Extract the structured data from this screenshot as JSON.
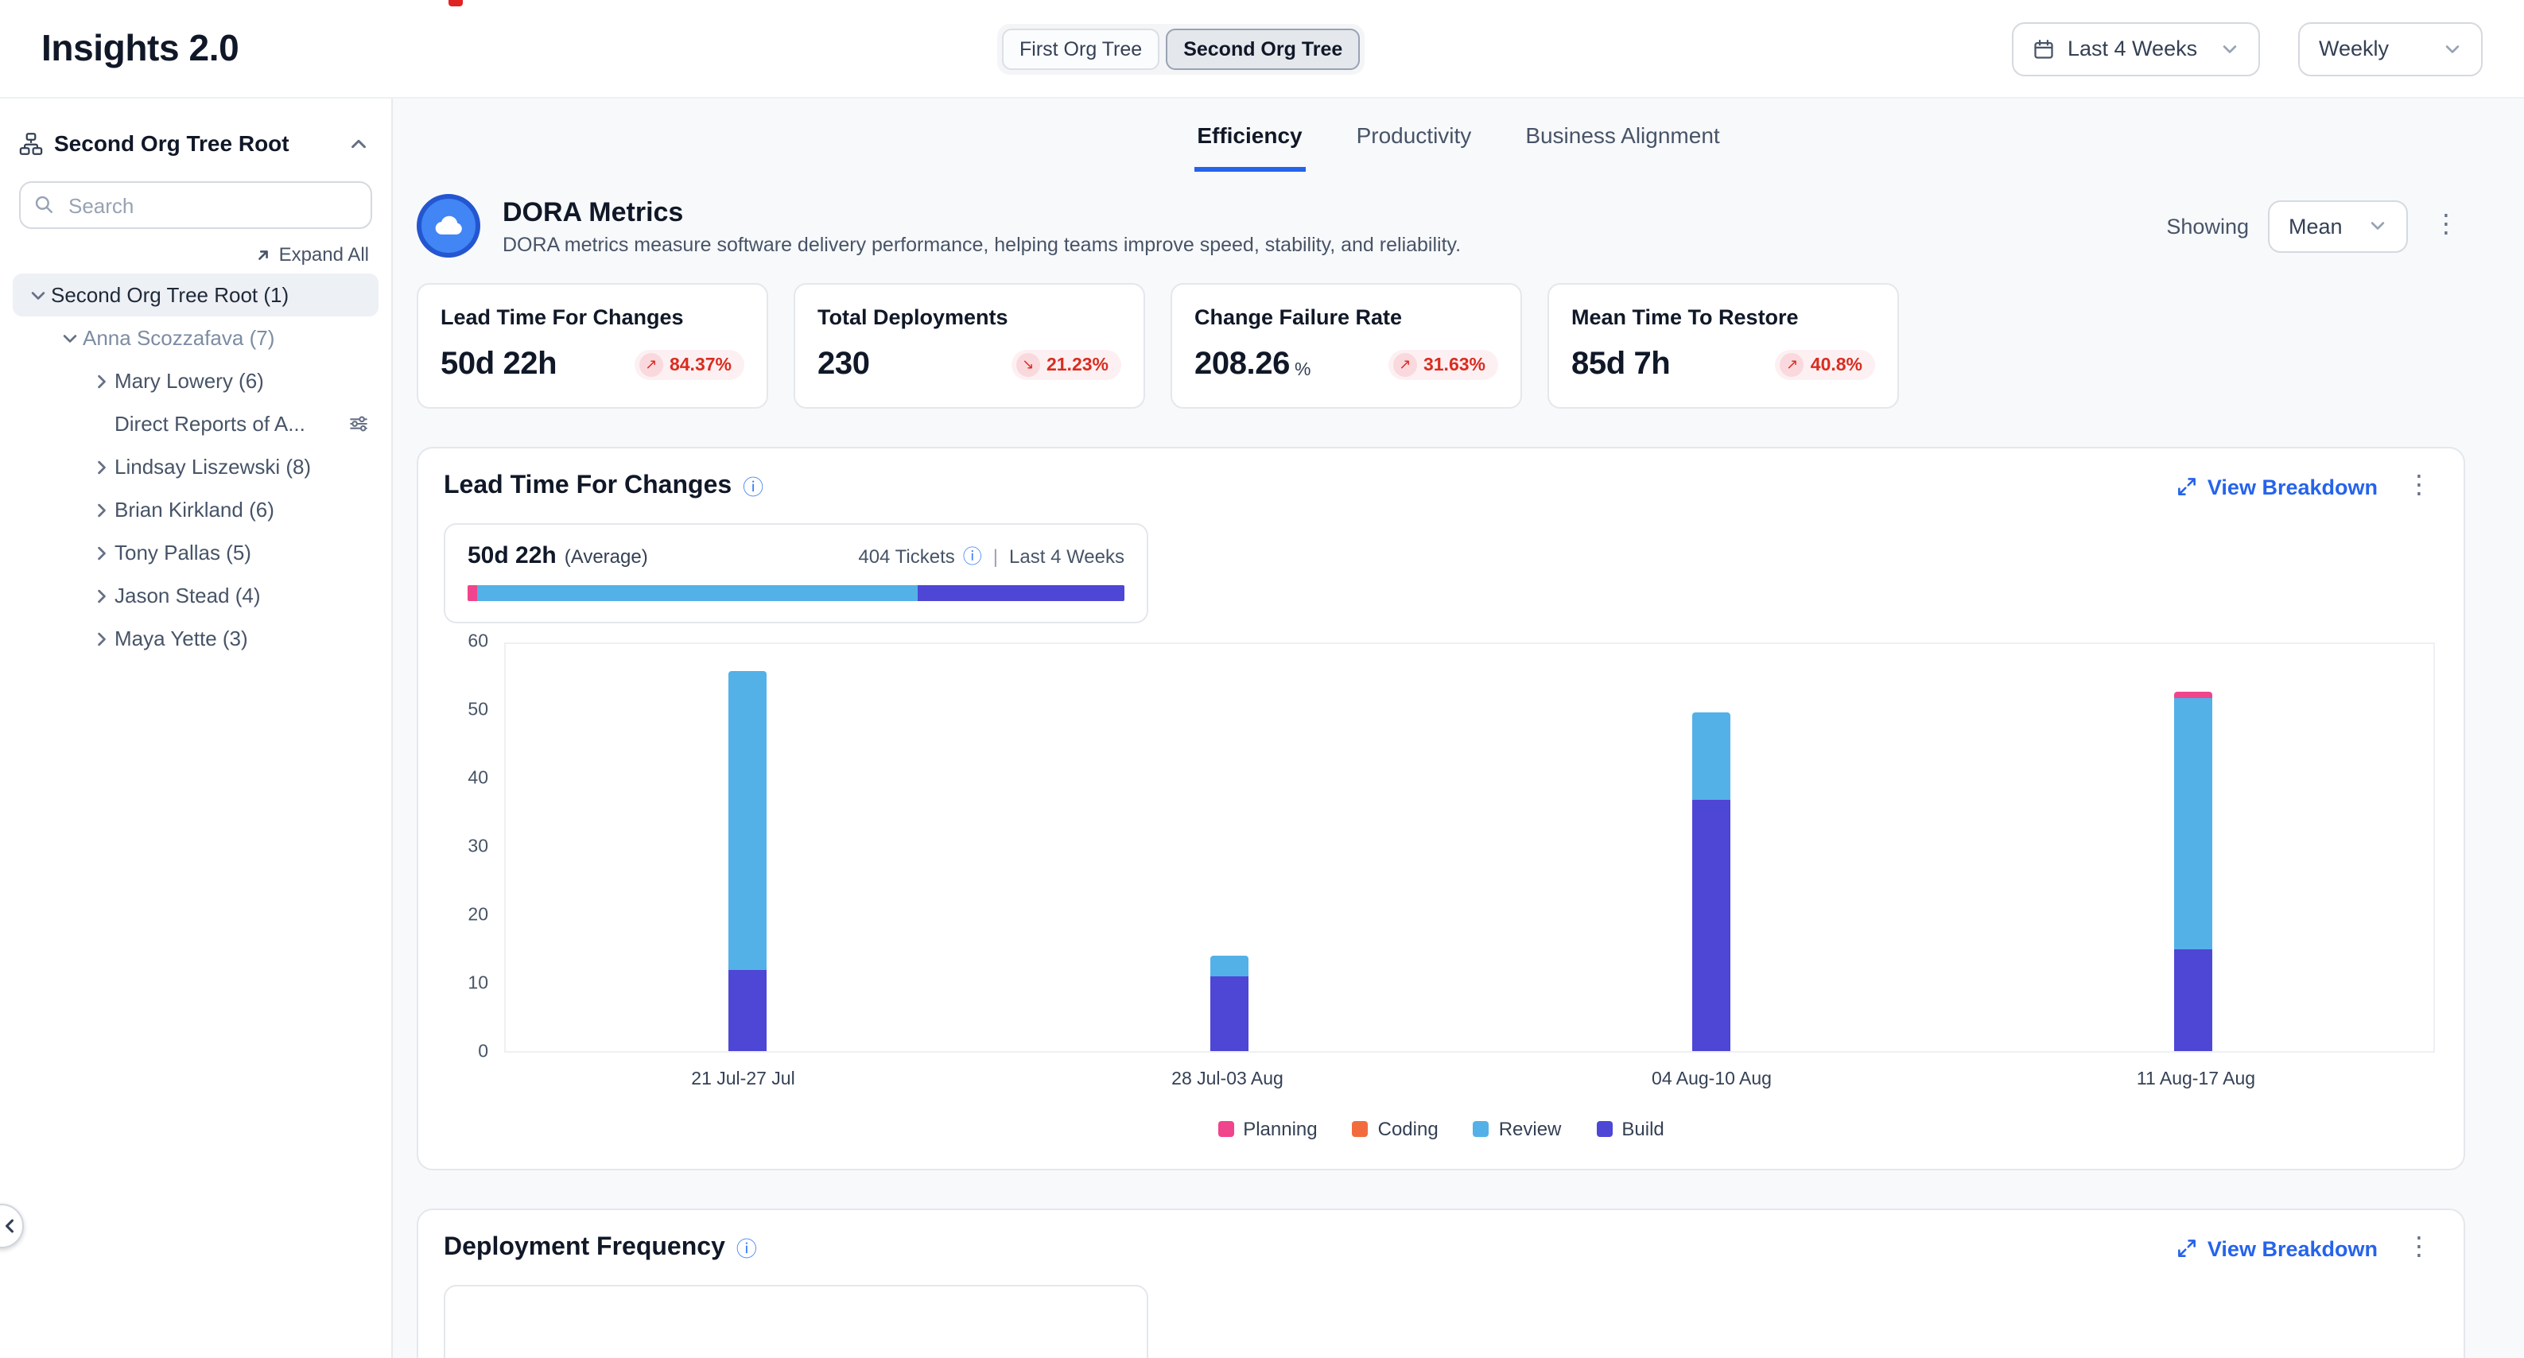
{
  "header": {
    "title": "Insights 2.0",
    "org_toggle": {
      "options": [
        {
          "label": "First Org Tree",
          "active": false
        },
        {
          "label": "Second Org Tree",
          "active": true
        }
      ]
    },
    "date_range": {
      "value": "Last 4 Weeks"
    },
    "granularity": {
      "value": "Weekly"
    }
  },
  "sidebar": {
    "root": {
      "label": "Second Org Tree Root"
    },
    "search": {
      "placeholder": "Search"
    },
    "expand_all": "Expand All",
    "tree": [
      {
        "label": "Second Org Tree Root (1)",
        "level": 0,
        "state": "expanded",
        "selected": true
      },
      {
        "label": "Anna Scozzafava (7)",
        "level": 1,
        "state": "expanded",
        "muted": true
      },
      {
        "label": "Mary Lowery (6)",
        "level": 2,
        "state": "collapsed"
      },
      {
        "label": "Direct Reports of A...",
        "level": 2,
        "state": "none",
        "trailing_icon": "sliders"
      },
      {
        "label": "Lindsay Liszewski (8)",
        "level": 2,
        "state": "collapsed"
      },
      {
        "label": "Brian Kirkland (6)",
        "level": 2,
        "state": "collapsed"
      },
      {
        "label": "Tony Pallas (5)",
        "level": 2,
        "state": "collapsed"
      },
      {
        "label": "Jason Stead (4)",
        "level": 2,
        "state": "collapsed"
      },
      {
        "label": "Maya Yette (3)",
        "level": 2,
        "state": "collapsed"
      }
    ]
  },
  "tabs": [
    {
      "label": "Efficiency",
      "active": true
    },
    {
      "label": "Productivity",
      "active": false
    },
    {
      "label": "Business Alignment",
      "active": false
    }
  ],
  "dora": {
    "title": "DORA Metrics",
    "description": "DORA metrics measure software delivery performance, helping teams improve speed, stability, and reliability.",
    "showing_label": "Showing",
    "showing_value": "Mean",
    "metrics": [
      {
        "label": "Lead Time For Changes",
        "value": "50d 22h",
        "unit": "",
        "delta": "84.37%",
        "trend": "up"
      },
      {
        "label": "Total Deployments",
        "value": "230",
        "unit": "",
        "delta": "21.23%",
        "trend": "down"
      },
      {
        "label": "Change Failure Rate",
        "value": "208.26",
        "unit": "%",
        "delta": "31.63%",
        "trend": "up"
      },
      {
        "label": "Mean Time To Restore",
        "value": "85d 7h",
        "unit": "",
        "delta": "40.8%",
        "trend": "up"
      }
    ]
  },
  "lead_time": {
    "title": "Lead Time For Changes",
    "view_breakdown": "View Breakdown",
    "summary": {
      "value": "50d 22h",
      "suffix": "(Average)",
      "tickets": "404 Tickets",
      "separator": "|",
      "range": "Last 4 Weeks",
      "distribution": [
        {
          "name": "Planning",
          "pct": 1.5
        },
        {
          "name": "Review",
          "pct": 67
        },
        {
          "name": "Build",
          "pct": 31.5
        }
      ]
    },
    "chart_data": {
      "type": "bar",
      "stacked": true,
      "categories": [
        "21 Jul-27 Jul",
        "28 Jul-03 Aug",
        "04 Aug-10 Aug",
        "11 Aug-17 Aug"
      ],
      "series": [
        {
          "name": "Planning",
          "values": [
            0,
            0,
            0,
            1
          ]
        },
        {
          "name": "Coding",
          "values": [
            0,
            0,
            0,
            0
          ]
        },
        {
          "name": "Review",
          "values": [
            44,
            3,
            13,
            37
          ]
        },
        {
          "name": "Build",
          "values": [
            12,
            11,
            37,
            15
          ]
        }
      ],
      "ylim": [
        0,
        60
      ],
      "yticks": [
        0,
        10,
        20,
        30,
        40,
        50,
        60
      ],
      "legend": [
        "Planning",
        "Coding",
        "Review",
        "Build"
      ],
      "legend_position": "bottom",
      "grid": false
    }
  },
  "deployment": {
    "title": "Deployment Frequency",
    "view_breakdown": "View Breakdown"
  },
  "colors": {
    "planning": "#f0448c",
    "coding": "#f26b3e",
    "review": "#53b1e8",
    "build": "#4e46d4",
    "accent_blue": "#2563eb",
    "delta_red": "#d92d20"
  }
}
